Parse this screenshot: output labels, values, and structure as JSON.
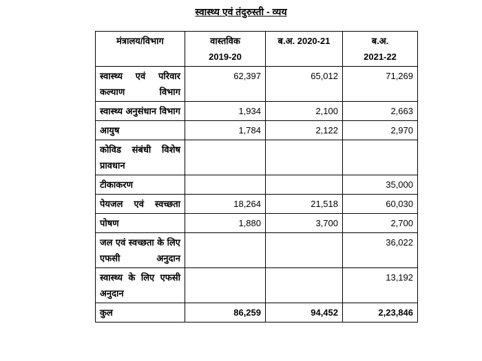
{
  "title": "स्वास्थ्य एवं तंदुरुस्ती - व्यय",
  "table": {
    "header": [
      [
        "मंत्रालय/विभाग"
      ],
      [
        "वास्तविक",
        "2019-20"
      ],
      [
        "ब.अ. 2020-21"
      ],
      [
        "ब.अ.",
        "2021-22"
      ]
    ],
    "rows": [
      [
        "स्वास्थ्य एवं परिवार कल्याण विभाग",
        "62,397",
        "65,012",
        "71,269"
      ],
      [
        "स्वास्थ्य अनुसंधान विभाग",
        "1,934",
        "2,100",
        "2,663"
      ],
      [
        "आयुष",
        "1,784",
        "2,122",
        "2,970"
      ],
      [
        "कोविड संबंधी विशेष प्रावधान",
        null,
        null,
        null
      ],
      [
        "टीकाकरण",
        null,
        null,
        "35,000"
      ],
      [
        "पेयजल एवं स्वच्छता",
        "18,264",
        "21,518",
        "60,030"
      ],
      [
        "पोषण",
        "1,880",
        "3,700",
        "2,700"
      ],
      [
        "जल एवं स्वच्छता के लिए एफसी अनुदान",
        null,
        null,
        "36,022"
      ],
      [
        "स्वास्थ्य के लिए एफसी अनुदान",
        null,
        null,
        "13,192"
      ],
      [
        "कुल",
        "86,259",
        "94,452",
        "2,23,846"
      ]
    ]
  }
}
